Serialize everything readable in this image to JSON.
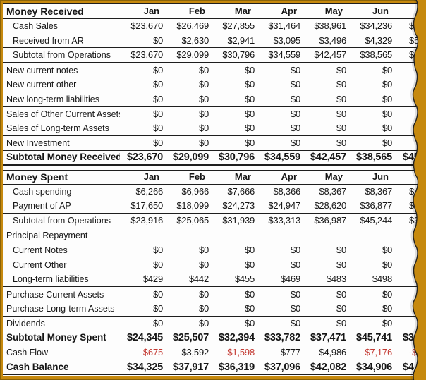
{
  "frame": {
    "gold_border_color": "#C6890E",
    "gold_edge_color": "#8A6206",
    "paper_color": "#FDFDFD",
    "tear_line_color": "#222222"
  },
  "colors": {
    "text": "#161616",
    "negative_value": "#C43B34",
    "rule_line": "#1E1E1E"
  },
  "table": {
    "months": [
      "Jan",
      "Feb",
      "Mar",
      "Apr",
      "May",
      "Jun"
    ],
    "note": "seventh column cut off by torn paper edge; only leading fragments visible",
    "sections": [
      {
        "title": "Money Received",
        "rows": [
          {
            "label": "Cash Sales",
            "indent": true,
            "values": [
              "$23,670",
              "$26,469",
              "$27,855",
              "$31,464",
              "$38,961",
              "$34,236"
            ],
            "frag": "$4"
          },
          {
            "label": "Received from AR",
            "indent": true,
            "values": [
              "$0",
              "$2,630",
              "$2,941",
              "$3,095",
              "$3,496",
              "$4,329"
            ],
            "frag": "$5",
            "sep": "bb"
          },
          {
            "label": "Subtotal from Operations",
            "indent": true,
            "values": [
              "$23,670",
              "$29,099",
              "$30,796",
              "$34,559",
              "$42,457",
              "$38,565"
            ],
            "frag": "$45",
            "sep": "bb"
          },
          {
            "label": "New current notes",
            "values": [
              "$0",
              "$0",
              "$0",
              "$0",
              "$0",
              "$0"
            ]
          },
          {
            "label": "New current other",
            "values": [
              "$0",
              "$0",
              "$0",
              "$0",
              "$0",
              "$0"
            ]
          },
          {
            "label": "New long-term liabilities",
            "values": [
              "$0",
              "$0",
              "$0",
              "$0",
              "$0",
              "$0"
            ],
            "sep": "bb"
          },
          {
            "label": "Sales of Other Current Assets",
            "values": [
              "$0",
              "$0",
              "$0",
              "$0",
              "$0",
              "$0"
            ]
          },
          {
            "label": "Sales of Long-term Assets",
            "values": [
              "$0",
              "$0",
              "$0",
              "$0",
              "$0",
              "$0"
            ],
            "sep": "bb"
          },
          {
            "label": "New Investment",
            "values": [
              "$0",
              "$0",
              "$0",
              "$0",
              "$0",
              "$0"
            ],
            "sep": "bb"
          },
          {
            "label": "Subtotal Money Received",
            "total": true,
            "values": [
              "$23,670",
              "$29,099",
              "$30,796",
              "$34,559",
              "$42,457",
              "$38,565"
            ],
            "frag": "$45",
            "sep": "bb2"
          }
        ]
      },
      {
        "title": "Money Spent",
        "rows": [
          {
            "label": "Cash spending",
            "indent": true,
            "values": [
              "$6,266",
              "$6,966",
              "$7,666",
              "$8,366",
              "$8,367",
              "$8,367"
            ],
            "frag": "$"
          },
          {
            "label": "Payment of AP",
            "indent": true,
            "values": [
              "$17,650",
              "$18,099",
              "$24,273",
              "$24,947",
              "$28,620",
              "$36,877"
            ],
            "frag": "$2",
            "sep": "bb"
          },
          {
            "label": "Subtotal from Operations",
            "indent": true,
            "values": [
              "$23,916",
              "$25,065",
              "$31,939",
              "$33,313",
              "$36,987",
              "$45,244"
            ],
            "frag": "$3",
            "sep": "bb"
          },
          {
            "label": "Principal Repayment",
            "values": [
              "",
              "",
              "",
              "",
              "",
              ""
            ]
          },
          {
            "label": "Current Notes",
            "indent": true,
            "values": [
              "$0",
              "$0",
              "$0",
              "$0",
              "$0",
              "$0"
            ]
          },
          {
            "label": "Current Other",
            "indent": true,
            "values": [
              "$0",
              "$0",
              "$0",
              "$0",
              "$0",
              "$0"
            ]
          },
          {
            "label": "Long-term liabilities",
            "indent": true,
            "values": [
              "$429",
              "$442",
              "$455",
              "$469",
              "$483",
              "$498"
            ],
            "sep": "bb"
          },
          {
            "label": "Purchase Current Assets",
            "values": [
              "$0",
              "$0",
              "$0",
              "$0",
              "$0",
              "$0"
            ]
          },
          {
            "label": "Purchase Long-term Assets",
            "values": [
              "$0",
              "$0",
              "$0",
              "$0",
              "$0",
              "$0"
            ],
            "sep": "bb"
          },
          {
            "label": "Dividends",
            "values": [
              "$0",
              "$0",
              "$0",
              "$0",
              "$0",
              "$0"
            ],
            "sep": "bb"
          },
          {
            "label": "Subtotal Money Spent",
            "total": true,
            "values": [
              "$24,345",
              "$25,507",
              "$32,394",
              "$33,782",
              "$37,471",
              "$45,741"
            ],
            "frag": "$33",
            "sep": "bb"
          },
          {
            "label": "Cash Flow",
            "values": [
              "-$675",
              "$3,592",
              "-$1,598",
              "$777",
              "$4,986",
              "-$7,176"
            ],
            "frag": "-$",
            "sep": "bb"
          },
          {
            "label": "Cash Balance",
            "total": true,
            "values": [
              "$34,325",
              "$37,917",
              "$36,319",
              "$37,096",
              "$42,082",
              "$34,906"
            ],
            "frag": "$4",
            "sep": "bb2"
          }
        ]
      }
    ]
  }
}
